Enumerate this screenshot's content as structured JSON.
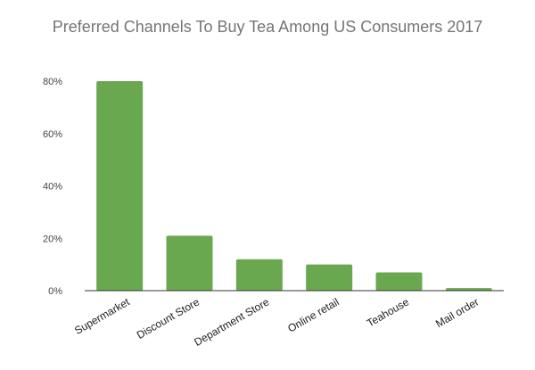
{
  "chart_data": {
    "type": "bar",
    "title": "Preferred Channels To Buy Tea Among US Consumers 2017",
    "xlabel": "",
    "ylabel": "",
    "categories": [
      "Supermarket",
      "Discount Store",
      "Department Store",
      "Online retail",
      "Teahouse",
      "Mail order"
    ],
    "values": [
      80,
      21,
      12,
      10,
      7,
      1
    ],
    "value_unit": "%",
    "ylim": [
      0,
      80
    ],
    "yticks": [
      "0%",
      "20%",
      "40%",
      "60%",
      "80%"
    ],
    "ytick_values": [
      0,
      20,
      40,
      60,
      80
    ],
    "bar_color": "#6aa84f",
    "axis_color": "#333333",
    "grid": false,
    "legend": "none"
  }
}
